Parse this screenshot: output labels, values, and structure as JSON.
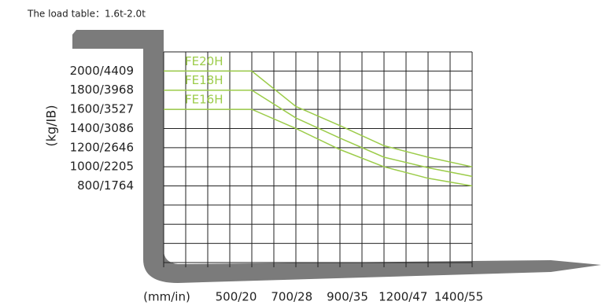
{
  "chart_data": {
    "type": "line",
    "title": "The load table：1.6t-2.0t",
    "y_label": "(kg/IB)",
    "x_label": "(mm/in)",
    "x_labels": [
      "500/20",
      "700/28",
      "900/35",
      "1200/47",
      "1400/55"
    ],
    "x": [
      100,
      500,
      700,
      900,
      1100,
      1300,
      1500
    ],
    "xlim": [
      100,
      1500
    ],
    "ylim": [
      0,
      2200
    ],
    "yticks": [
      {
        "value": 2000,
        "label": "2000/4409"
      },
      {
        "value": 1800,
        "label": "1800/3968"
      },
      {
        "value": 1600,
        "label": "1600/3527"
      },
      {
        "value": 1400,
        "label": "1400/3086"
      },
      {
        "value": 1200,
        "label": "1200/2646"
      },
      {
        "value": 1000,
        "label": "1000/2205"
      },
      {
        "value": 800,
        "label": "800/1764"
      }
    ],
    "series": [
      {
        "name": "FE20H",
        "color": "#9ccc4a",
        "values": [
          2000,
          2000,
          1630,
          1430,
          1220,
          1100,
          1000
        ]
      },
      {
        "name": "FE18H",
        "color": "#9ccc4a",
        "values": [
          1800,
          1800,
          1510,
          1300,
          1100,
          990,
          900
        ]
      },
      {
        "name": "FE16H",
        "color": "#9ccc4a",
        "values": [
          1600,
          1600,
          1400,
          1180,
          1000,
          880,
          800
        ]
      }
    ]
  }
}
